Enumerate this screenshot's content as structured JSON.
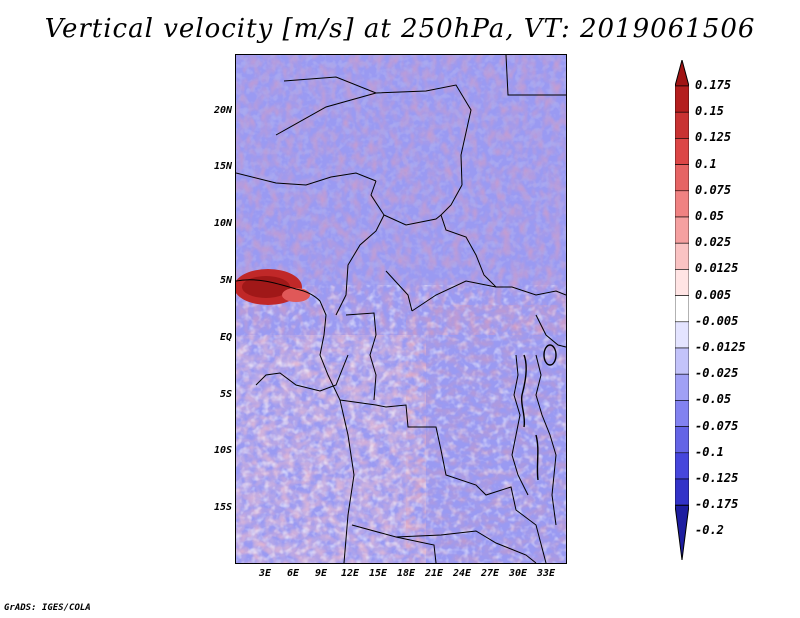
{
  "title": "Vertical velocity [m/s] at 250hPa, VT: 2019061506",
  "credit": "GrADS: IGES/COLA",
  "map": {
    "lat_labels": [
      "20N",
      "15N",
      "10N",
      "5N",
      "EQ",
      "5S",
      "10S",
      "15S"
    ],
    "lon_labels": [
      "3E",
      "6E",
      "9E",
      "12E",
      "15E",
      "18E",
      "21E",
      "24E",
      "27E",
      "30E",
      "33E"
    ]
  },
  "colorbar": {
    "labels": [
      "0.175",
      "0.15",
      "0.125",
      "0.1",
      "0.075",
      "0.05",
      "0.025",
      "0.0125",
      "0.005",
      "-0.005",
      "-0.0125",
      "-0.025",
      "-0.05",
      "-0.075",
      "-0.1",
      "-0.125",
      "-0.175",
      "-0.2"
    ],
    "colors": [
      "#a01414",
      "#b41e1e",
      "#c83232",
      "#dc4646",
      "#e66464",
      "#f08282",
      "#f5a0a0",
      "#fac3c3",
      "#ffe4e4",
      "#ffffff",
      "#e4e4ff",
      "#c3c3fa",
      "#a0a0f5",
      "#8282f0",
      "#6464e6",
      "#4646dc",
      "#3232c8",
      "#1e1ea0"
    ]
  }
}
